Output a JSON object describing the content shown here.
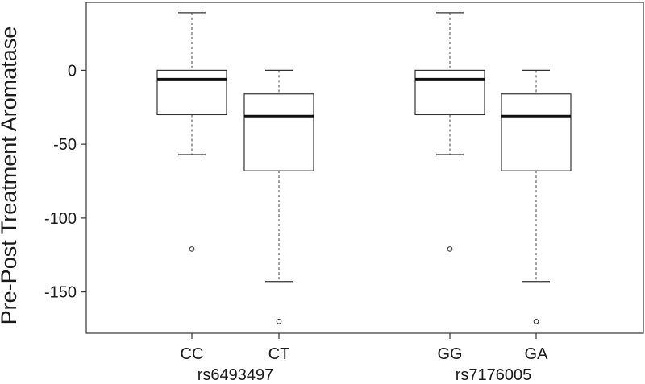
{
  "chart_data": {
    "type": "boxplot",
    "ylabel": "Pre-Post Treatment Aromatase",
    "ylim": [
      -178,
      46
    ],
    "yticks": [
      0,
      -50,
      -100,
      -150
    ],
    "ytick_labels": [
      "0",
      "-50",
      "-100",
      "-150"
    ],
    "groups": [
      {
        "label": "rs6493497",
        "categories": [
          "CC",
          "CT"
        ]
      },
      {
        "label": "rs7176005",
        "categories": [
          "GG",
          "GA"
        ]
      }
    ],
    "boxes": [
      {
        "category": "CC",
        "group": "rs6493497",
        "whisker_low": -57,
        "q1": -30,
        "median": -6,
        "q3": 0,
        "whisker_high": 39,
        "outliers": [
          -121
        ]
      },
      {
        "category": "CT",
        "group": "rs6493497",
        "whisker_low": -143,
        "q1": -68,
        "median": -31,
        "q3": -16,
        "whisker_high": 0,
        "outliers": [
          -170
        ]
      },
      {
        "category": "GG",
        "group": "rs7176005",
        "whisker_low": -57,
        "q1": -30,
        "median": -6,
        "q3": 0,
        "whisker_high": 39,
        "outliers": [
          -121
        ]
      },
      {
        "category": "GA",
        "group": "rs7176005",
        "whisker_low": -143,
        "q1": -68,
        "median": -31,
        "q3": -16,
        "whisker_high": 0,
        "outliers": [
          -170
        ]
      }
    ]
  }
}
